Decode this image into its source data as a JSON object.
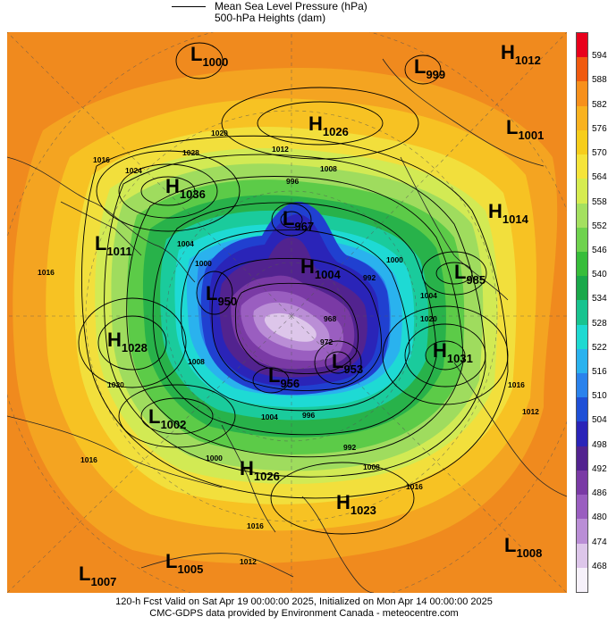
{
  "legend": {
    "line1": "Mean Sea Level Pressure (hPa)",
    "line2": "500-hPa Heights (dam)"
  },
  "systems": [
    {
      "type": "L",
      "value": "1000"
    },
    {
      "type": "L",
      "value": "999"
    },
    {
      "type": "H",
      "value": "1012"
    },
    {
      "type": "H",
      "value": "1026"
    },
    {
      "type": "L",
      "value": "1001"
    },
    {
      "type": "H",
      "value": "1036"
    },
    {
      "type": "L",
      "value": "967"
    },
    {
      "type": "H",
      "value": "1014"
    },
    {
      "type": "L",
      "value": "1011"
    },
    {
      "type": "H",
      "value": "1004"
    },
    {
      "type": "L",
      "value": "985"
    },
    {
      "type": "L",
      "value": "950"
    },
    {
      "type": "H",
      "value": "1028"
    },
    {
      "type": "H",
      "value": "1031"
    },
    {
      "type": "L",
      "value": "953"
    },
    {
      "type": "L",
      "value": "956"
    },
    {
      "type": "L",
      "value": "1002"
    },
    {
      "type": "H",
      "value": "1026"
    },
    {
      "type": "H",
      "value": "1023"
    },
    {
      "type": "L",
      "value": "1008"
    },
    {
      "type": "L",
      "value": "1005"
    },
    {
      "type": "L",
      "value": "1007"
    }
  ],
  "contour_labels": [
    "1020",
    "1016",
    "1024",
    "1028",
    "1012",
    "1008",
    "996",
    "1004",
    "1016",
    "1000",
    "992",
    "1004",
    "1020",
    "1016",
    "1012",
    "1004",
    "996",
    "992",
    "1008",
    "1016",
    "1016",
    "1020",
    "1008",
    "1012",
    "1000",
    "968",
    "972",
    "1000",
    "1016"
  ],
  "scale": {
    "ticks": [
      "594",
      "588",
      "582",
      "576",
      "570",
      "564",
      "558",
      "552",
      "546",
      "540",
      "534",
      "528",
      "522",
      "516",
      "510",
      "504",
      "498",
      "492",
      "486",
      "480",
      "474",
      "468"
    ],
    "colors": [
      "#e8001c",
      "#f05a0f",
      "#f7901c",
      "#f9b220",
      "#f6cd1c",
      "#f5e43a",
      "#d6ec50",
      "#a4e060",
      "#6fd24e",
      "#37bd3a",
      "#1aa84a",
      "#18c38f",
      "#1ed9d1",
      "#2ab2ee",
      "#2a82ec",
      "#1f4fd6",
      "#2a24b8",
      "#52238f",
      "#7a3aa5",
      "#9a5ec0",
      "#ba8ed6",
      "#ddc6ea",
      "#f6f1fa"
    ]
  },
  "footer": {
    "line1": "120-h Fcst Valid on Sat Apr 19 00:00:00 2025, Initialized on Mon Apr 14 00:00:00 2025",
    "line2": "CMC-GDPS data provided by Environment Canada - meteocentre.com"
  }
}
